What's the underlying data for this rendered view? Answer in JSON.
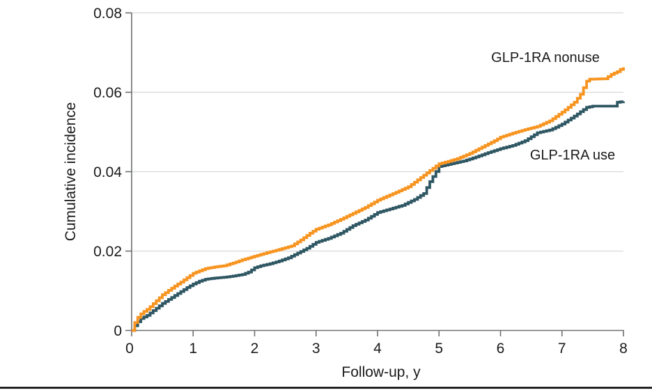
{
  "figure": {
    "type": "survival-cumulative-incidence-figure",
    "bottom_rule_color": "#000000",
    "background_color": "#ffffff"
  },
  "chart_data": {
    "type": "line",
    "subtype": "cumulative-incidence step curves (Kaplan-Meier style)",
    "title": "",
    "xlabel": "Follow-up, y",
    "ylabel": "Cumulative incidence",
    "xlim": [
      0,
      8
    ],
    "ylim": [
      0,
      0.08
    ],
    "x_tick_values": [
      0,
      1,
      2,
      3,
      4,
      5,
      6,
      7,
      8
    ],
    "x_tick_labels": [
      "0",
      "1",
      "2",
      "3",
      "4",
      "5",
      "6",
      "7",
      "8"
    ],
    "y_tick_values": [
      0,
      0.02,
      0.04,
      0.06,
      0.08
    ],
    "y_tick_labels": [
      "0",
      "0.02",
      "0.04",
      "0.06",
      "0.08"
    ],
    "grid": "horizontal gridlines at y ticks only",
    "legend_position": "labels annotated directly on plot",
    "colors": {
      "axis": "#6d6e71",
      "gridline": "#d9d9d9",
      "text": "#1a1a1a"
    },
    "series": [
      {
        "name": "GLP-1RA use",
        "label_annotation": "GLP-1RA use",
        "color": "#2F5763",
        "line_style": "step",
        "points": [
          [
            0,
            0
          ],
          [
            0.05,
            0.0012
          ],
          [
            0.1,
            0.0022
          ],
          [
            0.15,
            0.003
          ],
          [
            0.2,
            0.0034
          ],
          [
            0.25,
            0.0038
          ],
          [
            0.3,
            0.0044
          ],
          [
            0.4,
            0.0056
          ],
          [
            0.5,
            0.0068
          ],
          [
            0.6,
            0.0078
          ],
          [
            0.7,
            0.0088
          ],
          [
            0.8,
            0.0098
          ],
          [
            0.9,
            0.0108
          ],
          [
            1,
            0.0117
          ],
          [
            1.1,
            0.0124
          ],
          [
            1.2,
            0.0129
          ],
          [
            1.35,
            0.0132
          ],
          [
            1.5,
            0.0134
          ],
          [
            1.65,
            0.0137
          ],
          [
            1.8,
            0.0141
          ],
          [
            1.9,
            0.0147
          ],
          [
            2,
            0.0158
          ],
          [
            2.1,
            0.0163
          ],
          [
            2.25,
            0.0168
          ],
          [
            2.4,
            0.0175
          ],
          [
            2.55,
            0.0183
          ],
          [
            2.7,
            0.0195
          ],
          [
            2.85,
            0.0207
          ],
          [
            3,
            0.0222
          ],
          [
            3.2,
            0.0232
          ],
          [
            3.4,
            0.0245
          ],
          [
            3.6,
            0.0264
          ],
          [
            3.8,
            0.0278
          ],
          [
            4,
            0.0297
          ],
          [
            4.2,
            0.0306
          ],
          [
            4.4,
            0.0315
          ],
          [
            4.6,
            0.033
          ],
          [
            4.75,
            0.0345
          ],
          [
            4.85,
            0.0375
          ],
          [
            5,
            0.0413
          ],
          [
            5.2,
            0.042
          ],
          [
            5.4,
            0.0427
          ],
          [
            5.6,
            0.0437
          ],
          [
            5.8,
            0.0448
          ],
          [
            6,
            0.0458
          ],
          [
            6.2,
            0.0466
          ],
          [
            6.4,
            0.0478
          ],
          [
            6.6,
            0.0498
          ],
          [
            6.8,
            0.0505
          ],
          [
            6.9,
            0.0512
          ],
          [
            7,
            0.052
          ],
          [
            7.1,
            0.053
          ],
          [
            7.2,
            0.054
          ],
          [
            7.3,
            0.0551
          ],
          [
            7.4,
            0.0562
          ],
          [
            7.5,
            0.0565
          ],
          [
            7.85,
            0.0565
          ],
          [
            7.9,
            0.0575
          ],
          [
            8,
            0.0577
          ]
        ]
      },
      {
        "name": "GLP-1RA nonuse",
        "label_annotation": "GLP-1RA nonuse",
        "color": "#F79420",
        "line_style": "step",
        "points": [
          [
            0,
            0
          ],
          [
            0.05,
            0.002
          ],
          [
            0.1,
            0.0033
          ],
          [
            0.15,
            0.0042
          ],
          [
            0.2,
            0.0048
          ],
          [
            0.25,
            0.0053
          ],
          [
            0.3,
            0.006
          ],
          [
            0.4,
            0.0075
          ],
          [
            0.5,
            0.009
          ],
          [
            0.6,
            0.0101
          ],
          [
            0.7,
            0.0112
          ],
          [
            0.8,
            0.0122
          ],
          [
            0.9,
            0.0133
          ],
          [
            1,
            0.0144
          ],
          [
            1.1,
            0.015
          ],
          [
            1.2,
            0.0156
          ],
          [
            1.35,
            0.016
          ],
          [
            1.5,
            0.0163
          ],
          [
            1.65,
            0.017
          ],
          [
            1.8,
            0.0178
          ],
          [
            2,
            0.0187
          ],
          [
            2.2,
            0.0196
          ],
          [
            2.4,
            0.0204
          ],
          [
            2.6,
            0.0213
          ],
          [
            2.75,
            0.0228
          ],
          [
            2.9,
            0.0245
          ],
          [
            3,
            0.0255
          ],
          [
            3.2,
            0.0266
          ],
          [
            3.4,
            0.028
          ],
          [
            3.6,
            0.0295
          ],
          [
            3.8,
            0.031
          ],
          [
            4,
            0.0328
          ],
          [
            4.15,
            0.0338
          ],
          [
            4.3,
            0.0348
          ],
          [
            4.5,
            0.0362
          ],
          [
            4.7,
            0.0385
          ],
          [
            4.85,
            0.0403
          ],
          [
            5,
            0.042
          ],
          [
            5.15,
            0.0426
          ],
          [
            5.3,
            0.0433
          ],
          [
            5.5,
            0.0446
          ],
          [
            5.7,
            0.0462
          ],
          [
            5.9,
            0.0478
          ],
          [
            6,
            0.0487
          ],
          [
            6.2,
            0.0497
          ],
          [
            6.4,
            0.0506
          ],
          [
            6.6,
            0.0514
          ],
          [
            6.8,
            0.0528
          ],
          [
            7,
            0.055
          ],
          [
            7.1,
            0.0562
          ],
          [
            7.2,
            0.0575
          ],
          [
            7.3,
            0.0595
          ],
          [
            7.4,
            0.0628
          ],
          [
            7.45,
            0.0633
          ],
          [
            7.7,
            0.0634
          ],
          [
            7.8,
            0.0645
          ],
          [
            7.9,
            0.0652
          ],
          [
            8,
            0.0663
          ]
        ]
      }
    ]
  }
}
